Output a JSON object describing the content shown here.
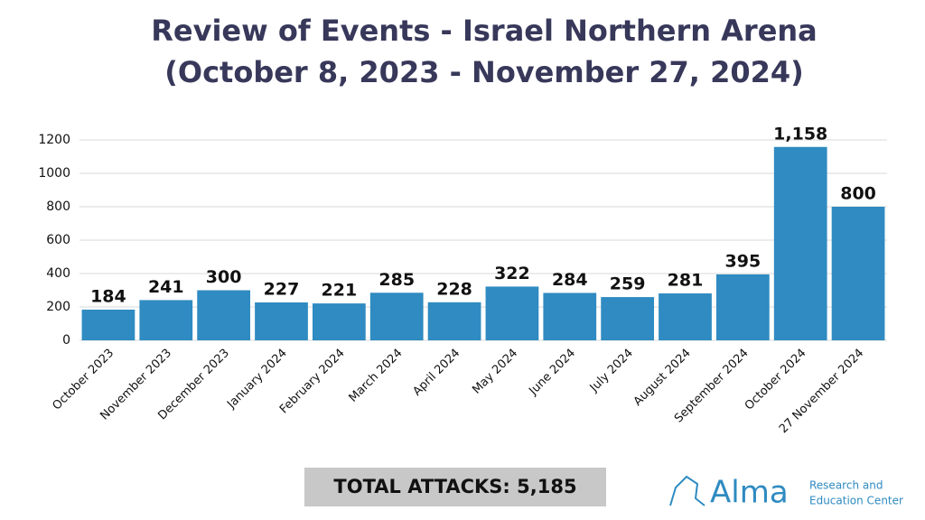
{
  "chart_data": {
    "type": "bar",
    "title": "Review of Events - Israel Northern Arena",
    "subtitle": "(October 8, 2023 - November 27, 2024)",
    "categories": [
      "October 2023",
      "November 2023",
      "December 2023",
      "January 2024",
      "February 2024",
      "March 2024",
      "April 2024",
      "May 2024",
      "June 2024",
      "July 2024",
      "August 2024",
      "September 2024",
      "October 2024",
      "27 November 2024"
    ],
    "values": [
      184,
      241,
      300,
      227,
      221,
      285,
      228,
      322,
      284,
      259,
      281,
      395,
      1158,
      800
    ],
    "value_labels": [
      "184",
      "241",
      "300",
      "227",
      "221",
      "285",
      "228",
      "322",
      "284",
      "259",
      "281",
      "395",
      "1,158",
      "800"
    ],
    "color": "#2f8bc1",
    "ylim": [
      0,
      1200
    ],
    "yticks": [
      0,
      200,
      400,
      600,
      800,
      1000,
      1200
    ],
    "grid": true,
    "annotations": [
      "TOTAL ATTACKS: 5,185"
    ]
  },
  "logo": {
    "name": "Alma",
    "tagline": [
      "Research and",
      "Education Center"
    ]
  }
}
